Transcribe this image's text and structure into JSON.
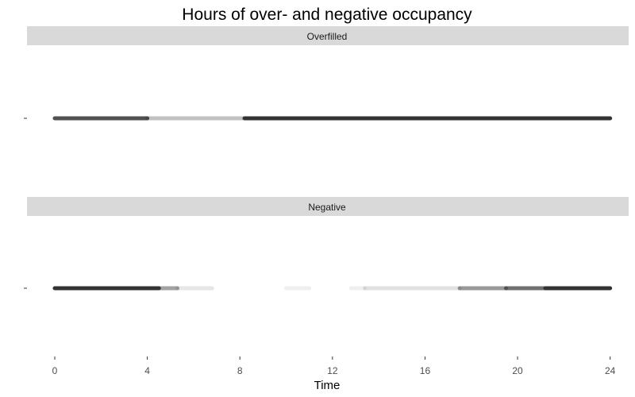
{
  "chart_data": {
    "type": "scatter",
    "title": "Hours of over- and negative occupancy",
    "xlabel": "Time",
    "ylabel": "",
    "xlim": [
      -1.2,
      24.8
    ],
    "xticks": [
      0,
      4,
      8,
      12,
      16,
      20,
      24
    ],
    "grid": false,
    "marker_color": "#333333",
    "strip_color": "#d9d9d9",
    "panels": [
      {
        "name": "Overfilled",
        "density": [
          {
            "x": [
              0,
              4.0
            ],
            "alpha": 0.85
          },
          {
            "x": [
              4.0,
              8.2
            ],
            "alpha": 0.3
          },
          {
            "x": [
              8.2,
              24
            ],
            "alpha": 1.0
          }
        ]
      },
      {
        "name": "Negative",
        "density": [
          {
            "x": [
              0,
              4.5
            ],
            "alpha": 1.0
          },
          {
            "x": [
              4.5,
              5.3
            ],
            "alpha": 0.45
          },
          {
            "x": [
              5.3,
              6.8
            ],
            "alpha": 0.12
          },
          {
            "x": [
              10.0,
              11.0
            ],
            "alpha": 0.08
          },
          {
            "x": [
              12.8,
              13.4
            ],
            "alpha": 0.08
          },
          {
            "x": [
              13.4,
              17.5
            ],
            "alpha": 0.15
          },
          {
            "x": [
              17.5,
              19.5
            ],
            "alpha": 0.5
          },
          {
            "x": [
              19.5,
              21.2
            ],
            "alpha": 0.7
          },
          {
            "x": [
              21.2,
              24
            ],
            "alpha": 1.0
          }
        ]
      }
    ]
  }
}
